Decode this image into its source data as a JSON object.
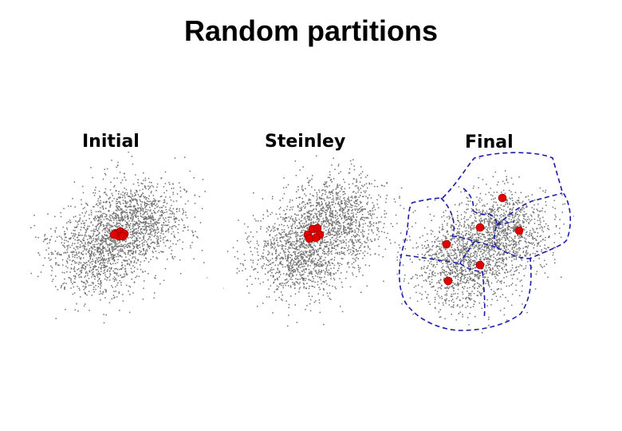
{
  "title": "Random partitions",
  "panels": [
    {
      "id": "initial",
      "label": "Initial"
    },
    {
      "id": "steinley",
      "label": "Steinley"
    },
    {
      "id": "final",
      "label": "Final"
    }
  ],
  "colors": {
    "points": "#707070",
    "centroids": "#e00000",
    "partition_lines": "#1a1aaa",
    "background": "#ffffff"
  },
  "centroid_count": 6
}
